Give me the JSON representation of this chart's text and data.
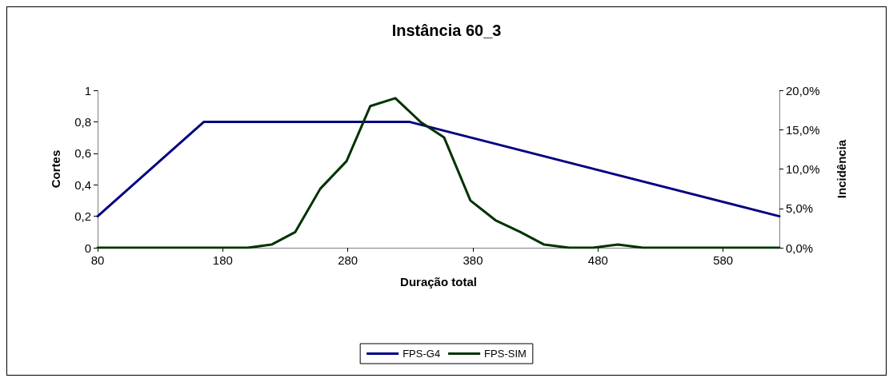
{
  "chart_data": {
    "type": "line",
    "title": "Instância 60_3",
    "xlabel": "Duração total",
    "ylabel": "Cortes",
    "y2label": "Incidência",
    "xlim": [
      80,
      625
    ],
    "xticks": [
      80,
      180,
      280,
      380,
      480,
      580
    ],
    "ylim": [
      0,
      1
    ],
    "yticks": [
      {
        "value": 0,
        "label": "0"
      },
      {
        "value": 0.2,
        "label": "0,2"
      },
      {
        "value": 0.4,
        "label": "0,4"
      },
      {
        "value": 0.6,
        "label": "0,6"
      },
      {
        "value": 0.8,
        "label": "0,8"
      },
      {
        "value": 1,
        "label": "1"
      }
    ],
    "y2lim": [
      0,
      20
    ],
    "y2ticks": [
      {
        "value": 0,
        "label": "0,0%"
      },
      {
        "value": 5,
        "label": "5,0%"
      },
      {
        "value": 10,
        "label": "10,0%"
      },
      {
        "value": 15,
        "label": "15,0%"
      },
      {
        "value": 20,
        "label": "20,0%"
      }
    ],
    "grid": false,
    "legend": "bottom",
    "marker": "none",
    "line_style": "solid",
    "series": [
      {
        "name": "FPS-G4",
        "color": "#000080",
        "x": [
          80,
          165,
          329,
          625
        ],
        "values": [
          0.2,
          0.8,
          0.8,
          0.2
        ]
      },
      {
        "name": "FPS-SIM",
        "color": "#003300",
        "axis": "y2",
        "x": [
          80,
          200,
          219,
          238,
          258,
          279,
          298,
          318,
          338,
          357,
          378,
          398,
          418,
          437,
          457,
          476,
          496,
          516,
          625
        ],
        "values": [
          0,
          0,
          0.4,
          2,
          7.5,
          11,
          18,
          19,
          16,
          14,
          6,
          3.5,
          2,
          0.4,
          0,
          0,
          0.4,
          0,
          0
        ]
      }
    ]
  }
}
